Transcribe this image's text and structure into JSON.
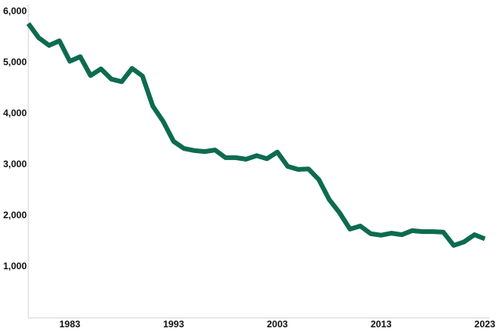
{
  "chart_data": {
    "type": "line",
    "x": [
      1979,
      1980,
      1981,
      1982,
      1983,
      1984,
      1985,
      1986,
      1987,
      1988,
      1989,
      1990,
      1991,
      1992,
      1993,
      1994,
      1995,
      1996,
      1997,
      1998,
      1999,
      2000,
      2001,
      2002,
      2003,
      2004,
      2005,
      2006,
      2007,
      2008,
      2009,
      2010,
      2011,
      2012,
      2013,
      2014,
      2015,
      2016,
      2017,
      2018,
      2019,
      2020,
      2021,
      2022,
      2023
    ],
    "series": [
      {
        "color": "#0d6b4f",
        "values": [
          5770,
          5490,
          5340,
          5430,
          5030,
          5120,
          4750,
          4880,
          4680,
          4630,
          4890,
          4740,
          4150,
          3850,
          3460,
          3320,
          3280,
          3260,
          3290,
          3140,
          3140,
          3110,
          3180,
          3120,
          3250,
          2970,
          2910,
          2920,
          2710,
          2320,
          2060,
          1740,
          1800,
          1650,
          1620,
          1660,
          1630,
          1710,
          1690,
          1690,
          1680,
          1420,
          1490,
          1630,
          1550
        ]
      }
    ],
    "xlim": [
      1979,
      2023
    ],
    "xticks": [
      1983,
      1993,
      2003,
      2013,
      2023
    ],
    "ylim": [
      0,
      6000
    ],
    "yticks": [
      {
        "value": 1000,
        "label": "1,000"
      },
      {
        "value": 2000,
        "label": "2,000"
      },
      {
        "value": 3000,
        "label": "3,000"
      },
      {
        "value": 4000,
        "label": "4,000"
      },
      {
        "value": 5000,
        "label": "5,000"
      },
      {
        "value": 6000,
        "label": "6,000"
      }
    ]
  }
}
